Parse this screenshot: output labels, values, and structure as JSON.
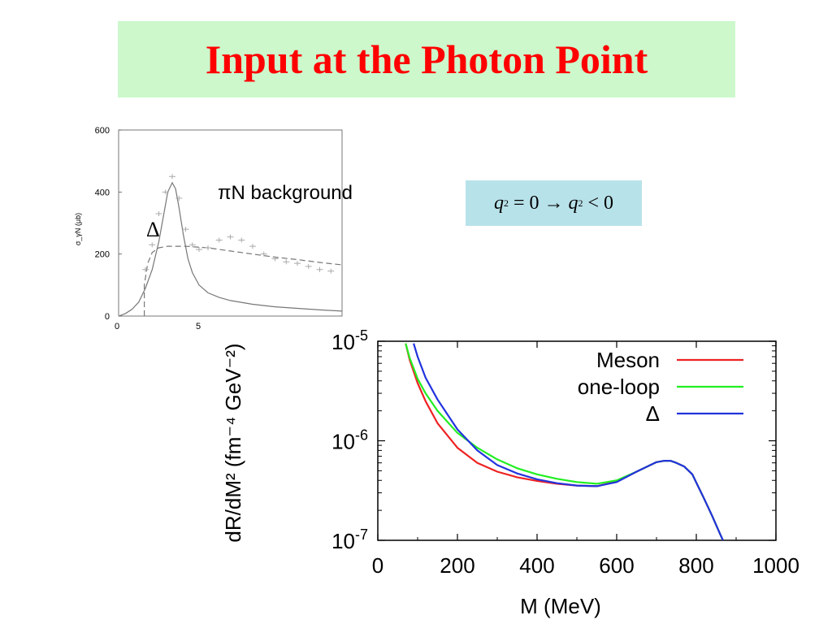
{
  "slide": {
    "title": "Input at the Photon Point",
    "pin_label": "πN background",
    "delta_label": "Δ",
    "formula": {
      "lhs_var": "q",
      "lhs_exp": "2",
      "lhs_rel": "= 0 →",
      "rhs_var": "q",
      "rhs_exp": "2",
      "rhs_rel": "< 0"
    }
  },
  "chart_data": [
    {
      "type": "line",
      "ylabel": "σ_γN (μb)",
      "xlabel": "",
      "x_tick_labels": [
        "0",
        "5"
      ],
      "y_ticks": [
        0,
        200,
        400,
        600
      ],
      "xlim": [
        0,
        1
      ],
      "ylim": [
        0,
        600
      ],
      "series": [
        {
          "style": "solid",
          "color": "#777777",
          "x": [
            0,
            0.03,
            0.06,
            0.09,
            0.12,
            0.15,
            0.18,
            0.2,
            0.22,
            0.24,
            0.255,
            0.27,
            0.29,
            0.31,
            0.33,
            0.36,
            0.4,
            0.45,
            0.5,
            0.6,
            0.7,
            0.8,
            0.9,
            1.0
          ],
          "y": [
            0,
            8,
            22,
            45,
            90,
            150,
            240,
            320,
            400,
            430,
            410,
            350,
            260,
            185,
            140,
            100,
            75,
            60,
            50,
            38,
            30,
            25,
            20,
            16
          ]
        },
        {
          "style": "dashed",
          "color": "#777777",
          "x": [
            0.115,
            0.115,
            0.13,
            0.15,
            0.18,
            0.22,
            0.3,
            0.4,
            0.5,
            0.6,
            0.7,
            0.8,
            0.9,
            1.0
          ],
          "y": [
            0,
            100,
            170,
            205,
            220,
            225,
            225,
            220,
            210,
            200,
            190,
            182,
            173,
            165
          ]
        },
        {
          "style": "markers",
          "color": "#aaaaaa",
          "x": [
            0.12,
            0.15,
            0.18,
            0.21,
            0.24,
            0.27,
            0.3,
            0.33,
            0.36,
            0.4,
            0.45,
            0.5,
            0.55,
            0.6,
            0.65,
            0.7,
            0.75,
            0.8,
            0.85,
            0.9,
            0.95
          ],
          "y": [
            150,
            230,
            330,
            400,
            450,
            380,
            280,
            230,
            215,
            220,
            245,
            255,
            245,
            225,
            200,
            185,
            175,
            170,
            160,
            150,
            145
          ]
        }
      ]
    },
    {
      "type": "line",
      "xlabel": "M (MeV)",
      "ylabel": "dR/dM² (fm⁻⁴ GeV⁻²)",
      "x_ticks": [
        "0",
        "200",
        "400",
        "600",
        "800",
        "1000"
      ],
      "y_ticks": [
        {
          "base": "10",
          "exp": "-5",
          "value": 1e-05
        },
        {
          "base": "10",
          "exp": "-6",
          "value": 1e-06
        },
        {
          "base": "10",
          "exp": "-7",
          "value": 1e-07
        }
      ],
      "xlim": [
        0,
        1000
      ],
      "ylim": [
        1e-07,
        1e-05
      ],
      "yscale": "log",
      "legend_position": "top-right",
      "series": [
        {
          "name": "Meson",
          "color": "#ee2222",
          "x": [
            70,
            80,
            100,
            120,
            150,
            200,
            250,
            300,
            350,
            400,
            450,
            500,
            550,
            600,
            650,
            700,
            720,
            735,
            750,
            770,
            790,
            800,
            820,
            840,
            860,
            867
          ],
          "y": [
            9.5e-06,
            6.5e-06,
            3.8e-06,
            2.5e-06,
            1.5e-06,
            8.5e-07,
            6e-07,
            4.9e-07,
            4.3e-07,
            3.95e-07,
            3.7e-07,
            3.55e-07,
            3.5e-07,
            3.9e-07,
            4.9e-07,
            6.1e-07,
            6.3e-07,
            6.3e-07,
            6e-07,
            5.5e-07,
            4.6e-07,
            3.8e-07,
            2.6e-07,
            1.75e-07,
            1.15e-07,
            1e-07
          ]
        },
        {
          "name": "one-loop",
          "color": "#22ee22",
          "x": [
            70,
            80,
            100,
            120,
            150,
            200,
            250,
            300,
            350,
            400,
            450,
            500,
            550,
            600,
            650,
            700,
            720,
            735,
            750,
            770,
            790,
            800,
            820,
            840,
            860,
            867
          ],
          "y": [
            9.5e-06,
            6.8e-06,
            4.2e-06,
            3e-06,
            2e-06,
            1.2e-06,
            8.5e-07,
            6.5e-07,
            5.3e-07,
            4.6e-07,
            4.15e-07,
            3.85e-07,
            3.7e-07,
            4e-07,
            4.9e-07,
            6.1e-07,
            6.3e-07,
            6.3e-07,
            6e-07,
            5.5e-07,
            4.6e-07,
            3.8e-07,
            2.6e-07,
            1.75e-07,
            1.15e-07,
            1e-07
          ]
        },
        {
          "name": "Δ",
          "color": "#2233dd",
          "x": [
            90,
            100,
            120,
            150,
            200,
            250,
            300,
            350,
            400,
            450,
            500,
            550,
            600,
            650,
            700,
            720,
            735,
            750,
            770,
            790,
            800,
            820,
            840,
            860,
            867
          ],
          "y": [
            9.5e-06,
            7e-06,
            4.3e-06,
            2.6e-06,
            1.3e-06,
            8e-07,
            5.7e-07,
            4.7e-07,
            4.1e-07,
            3.75e-07,
            3.55e-07,
            3.5e-07,
            3.85e-07,
            4.9e-07,
            6.1e-07,
            6.3e-07,
            6.3e-07,
            6e-07,
            5.5e-07,
            4.6e-07,
            3.8e-07,
            2.6e-07,
            1.75e-07,
            1.15e-07,
            1e-07
          ]
        }
      ]
    }
  ]
}
